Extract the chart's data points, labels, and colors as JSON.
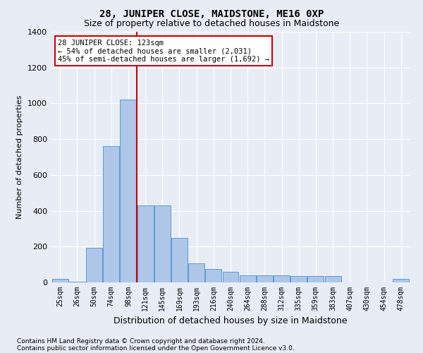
{
  "title": "28, JUNIPER CLOSE, MAIDSTONE, ME16 0XP",
  "subtitle": "Size of property relative to detached houses in Maidstone",
  "xlabel": "Distribution of detached houses by size in Maidstone",
  "ylabel": "Number of detached properties",
  "footnote1": "Contains HM Land Registry data © Crown copyright and database right 2024.",
  "footnote2": "Contains public sector information licensed under the Open Government Licence v3.0.",
  "categories": [
    "25sqm",
    "26sqm",
    "50sqm",
    "74sqm",
    "98sqm",
    "121sqm",
    "145sqm",
    "169sqm",
    "193sqm",
    "216sqm",
    "240sqm",
    "264sqm",
    "288sqm",
    "312sqm",
    "335sqm",
    "359sqm",
    "383sqm",
    "407sqm",
    "430sqm",
    "454sqm",
    "478sqm"
  ],
  "values": [
    20,
    5,
    195,
    760,
    1020,
    430,
    430,
    250,
    105,
    75,
    60,
    40,
    40,
    40,
    35,
    35,
    35,
    0,
    0,
    0,
    20
  ],
  "bar_color": "#aec6e8",
  "bar_edge_color": "#5b9bd5",
  "vline_color": "#cc0000",
  "vline_pos": 4.5,
  "annotation_text": "28 JUNIPER CLOSE: 123sqm\n← 54% of detached houses are smaller (2,031)\n45% of semi-detached houses are larger (1,692) →",
  "annotation_box_color": "#ffffff",
  "annotation_box_edge": "#cc0000",
  "ylim": [
    0,
    1400
  ],
  "yticks": [
    0,
    200,
    400,
    600,
    800,
    1000,
    1200,
    1400
  ],
  "background_color": "#e8edf5",
  "grid_color": "#ffffff",
  "title_fontsize": 10,
  "subtitle_fontsize": 9
}
